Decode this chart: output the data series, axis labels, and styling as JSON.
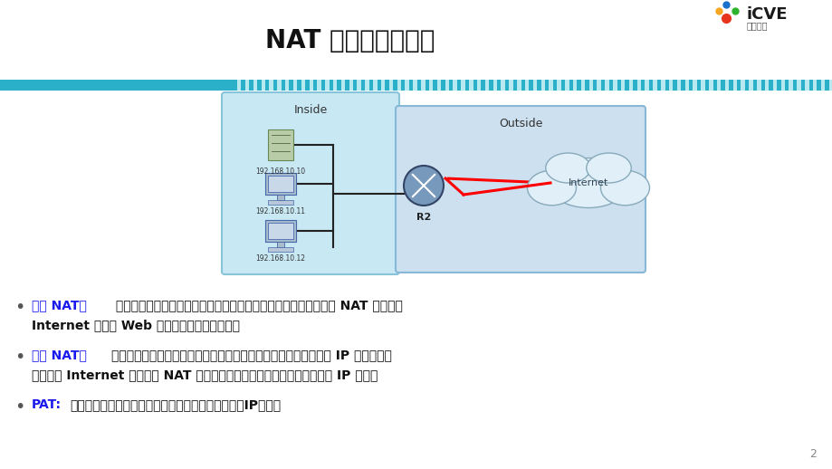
{
  "title": "NAT 转换有三种类型",
  "title_fontsize": 18,
  "background_color": "#ffffff",
  "stripe_color_dark": "#2ab0c8",
  "stripe_color_light": "#b8e8f0",
  "inside_box_color": "#c8e8f4",
  "outside_box_color": "#cce0f0",
  "inside_label": "Inside",
  "outside_label": "Outside",
  "ip1": "192.168.10.10",
  "ip2": "192.168.10.11",
  "ip3": "192.168.10.12",
  "router_label": "R2",
  "internet_label": "Internet",
  "bullet1_key": "静态 NAT：",
  "bullet1_line1": " 使用本地地址与全局地址的一对一映射，这些映射保持不变。静态 NAT 对于可从",
  "bullet1_line2": "Internet 访问的 Web 服务器或主机特别有用。",
  "bullet2_key": "动态 NAT：",
  "bullet2_line1": "使用公有地址池，并以先到先得的原则分配这些地址。当具有私有 IP 地址的主机",
  "bullet2_line2": "请求访问 Internet 时，动态 NAT 从地址池中选择一个未被其它主机占用的 IP 地址。",
  "bullet3_key": "PAT:",
  "bullet3_rest": "使用同一个地址的不同端口进行映射，可以有效节省IP地址。",
  "page_number": "2",
  "key_color": "#1a1aee",
  "text_color": "#111111",
  "bullet_dot_color": "#555555"
}
